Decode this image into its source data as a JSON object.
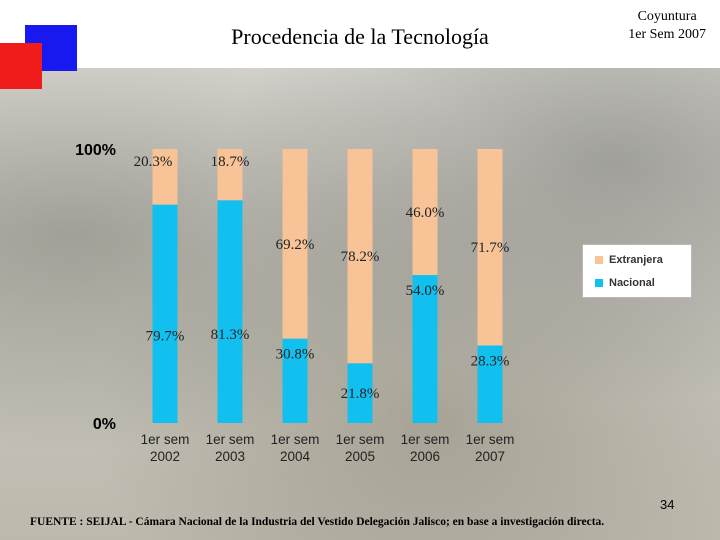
{
  "slide": {
    "title": "Procedencia de la Tecnología",
    "coyuntura_line1": "Coyuntura",
    "coyuntura_line2": "1er Sem 2007",
    "page_number": "34",
    "footer": "FUENTE :  SEIJAL - Cámara Nacional de la Industria del Vestido Delegación Jalisco;  en base a investigación directa."
  },
  "colors": {
    "nacional": "#12c0f0",
    "extranjera": "#f8c396",
    "red_square": "#f01c1c",
    "blue_square": "#1818f0"
  },
  "chart_data": {
    "type": "bar",
    "stacked": true,
    "title": "Procedencia de la Tecnología",
    "categories": [
      [
        "1er sem",
        "2002"
      ],
      [
        "1er sem",
        "2003"
      ],
      [
        "1er sem",
        "2004"
      ],
      [
        "1er sem",
        "2005"
      ],
      [
        "1er sem",
        "2006"
      ],
      [
        "1er sem",
        "2007"
      ]
    ],
    "series": [
      {
        "name": "Nacional",
        "values": [
          79.7,
          81.3,
          30.8,
          21.8,
          54.0,
          28.3
        ],
        "labels": [
          "79.7%",
          "81.3%",
          "30.8%",
          "21.8%",
          "54.0%",
          "28.3%"
        ]
      },
      {
        "name": "Extranjera",
        "values": [
          20.3,
          18.7,
          69.2,
          78.2,
          46.0,
          71.7
        ],
        "labels": [
          "20.3%",
          "18.7%",
          "69.2%",
          "78.2%",
          "46.0%",
          "71.7%"
        ]
      }
    ],
    "ylim": [
      0,
      100
    ],
    "y_ticks": [
      "0%",
      "100%"
    ],
    "legend_position": "right",
    "legend": [
      "Extranjera",
      "Nacional"
    ]
  }
}
